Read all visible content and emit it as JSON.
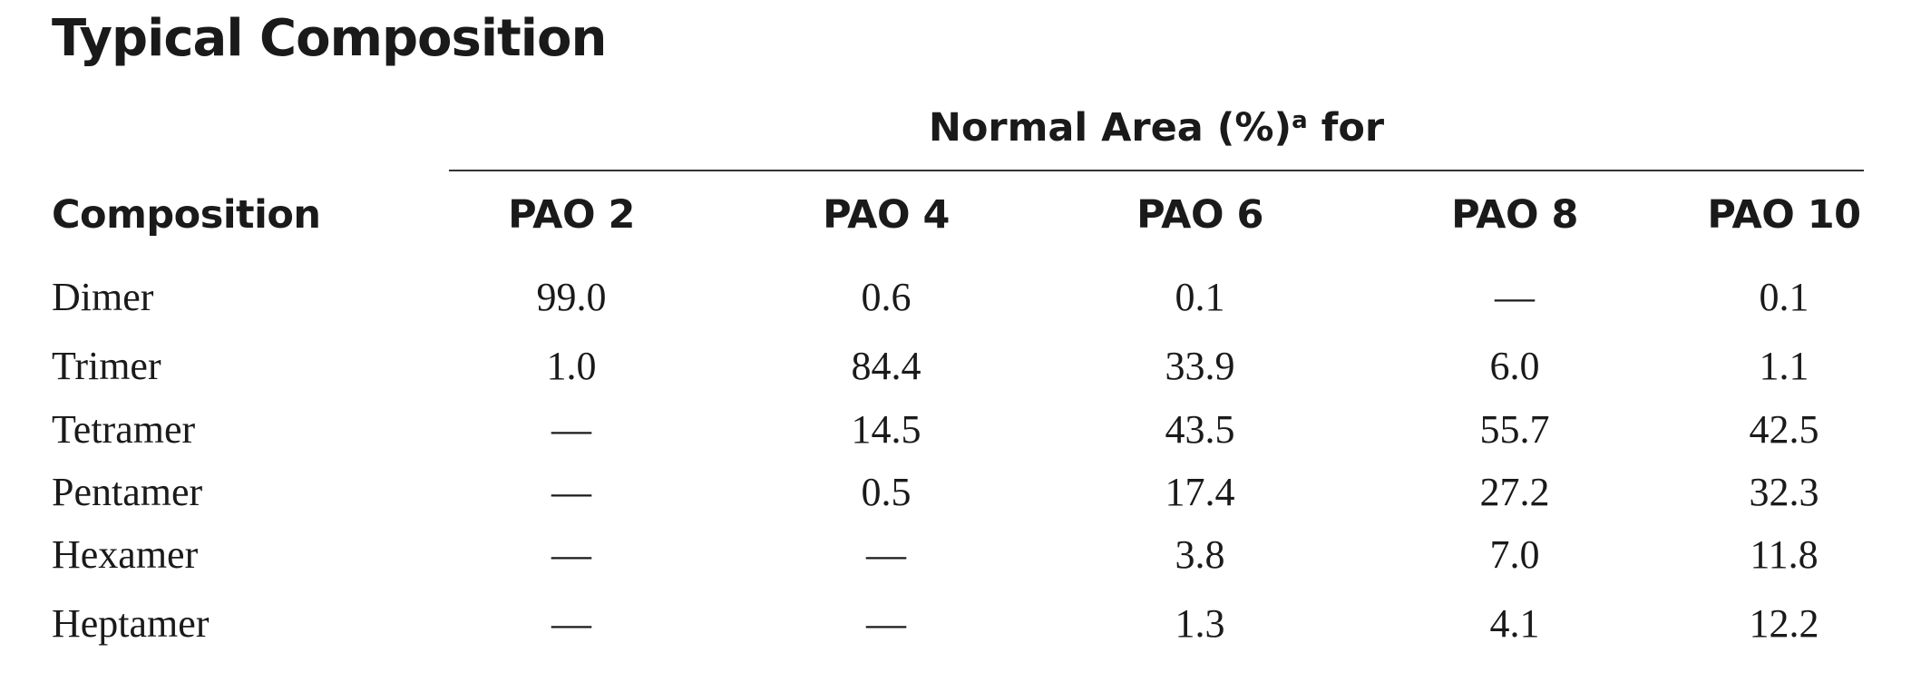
{
  "title": "Typical Composition",
  "group_header": {
    "text": "Normal Area (%)",
    "superscript": "a",
    "suffix": " for"
  },
  "columns": [
    "Composition",
    "PAO 2",
    "PAO 4",
    "PAO 6",
    "PAO 8",
    "PAO 10"
  ],
  "rows": [
    [
      "Dimer",
      "99.0",
      "0.6",
      "0.1",
      "—",
      "0.1"
    ],
    [
      "Trimer",
      "1.0",
      "84.4",
      "33.9",
      "6.0",
      "1.1"
    ],
    [
      "Tetramer",
      "—",
      "14.5",
      "43.5",
      "55.7",
      "42.5"
    ],
    [
      "Pentamer",
      "—",
      "0.5",
      "17.4",
      "27.2",
      "32.3"
    ],
    [
      "Hexamer",
      "—",
      "—",
      "3.8",
      "7.0",
      "11.8"
    ],
    [
      "Heptamer",
      "—",
      "—",
      "1.3",
      "4.1",
      "12.2"
    ]
  ]
}
